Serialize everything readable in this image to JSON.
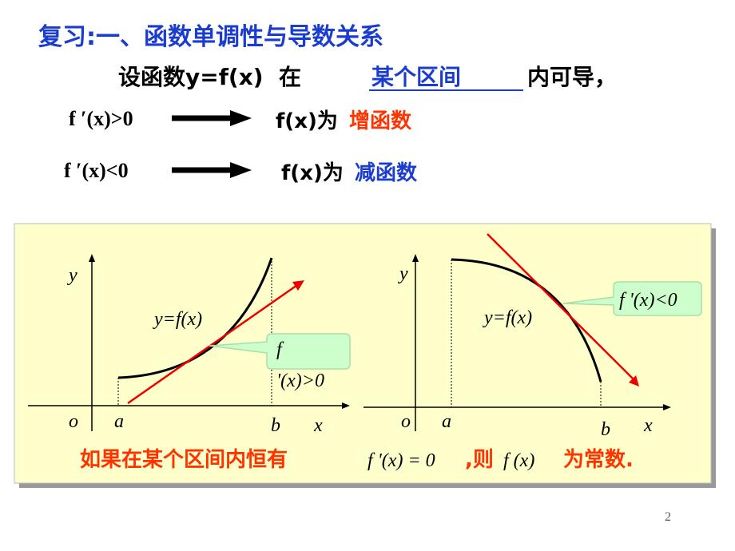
{
  "header": {
    "title": "复习:一、函数单调性与导数关系"
  },
  "intro": {
    "lead": "设函数y=f(x)  在 ",
    "interval": "某个区间",
    "tail": "内可导，"
  },
  "rules": [
    {
      "condition": "f ′(x)>0",
      "result": "f(x)为",
      "kind": "增函数"
    },
    {
      "condition": "f ′(x)<0",
      "result": "f(x)为",
      "kind": "减函数"
    }
  ],
  "figure": {
    "left": {
      "y_axis": "y",
      "curve": "y=f(x)",
      "callout_line1": "f",
      "callout_line2": "'(x)>0",
      "origin": "o",
      "a": "a",
      "b": "b",
      "x_axis": "x"
    },
    "right": {
      "y_axis": "y",
      "callout": "f '(x)<0",
      "curve": "y=f(x)",
      "origin": "o",
      "a": "a",
      "b": "b",
      "x_axis": "x"
    },
    "note": {
      "lead": "如果在某个区间内恒有",
      "formula": "f '(x) = 0",
      "mid": ",则",
      "function": "f (x)",
      "tail": "为常数."
    }
  },
  "page_number": "2"
}
